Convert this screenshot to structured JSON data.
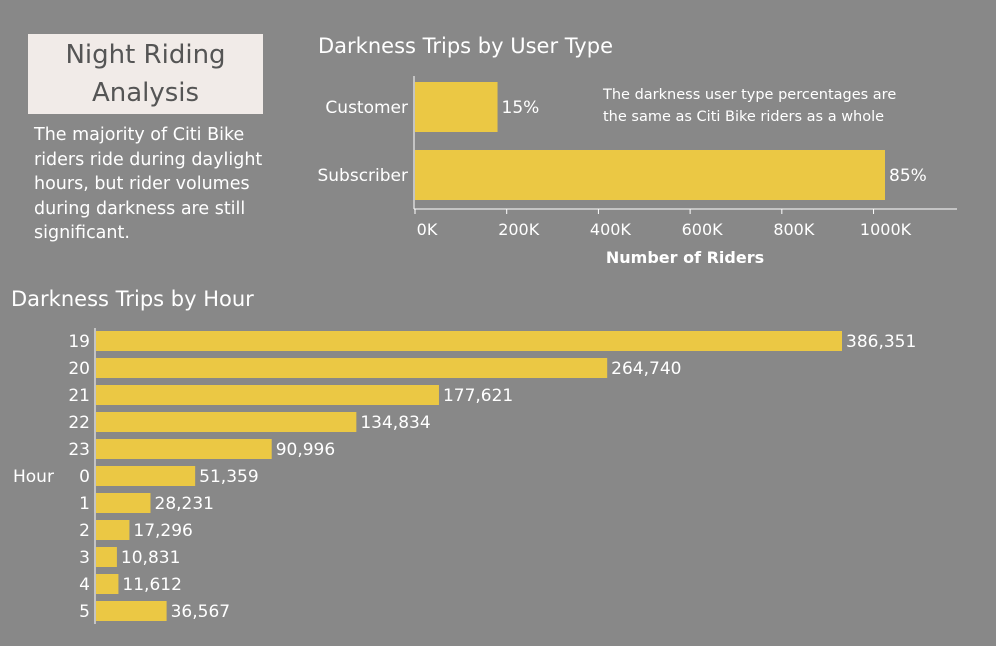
{
  "header": {
    "title": "Night Riding Analysis",
    "intro": "The majority of Citi Bike riders ride during daylight hours, but rider volumes during darkness are still significant."
  },
  "colors": {
    "background": "#888888",
    "bar": "#ebc844",
    "title_bg": "#f1ebe8",
    "title_text": "#555555"
  },
  "chart_data": [
    {
      "type": "bar",
      "orientation": "horizontal",
      "title": "Darkness Trips by User Type",
      "categories": [
        "Customer",
        "Subscriber"
      ],
      "values": [
        180000,
        1025000
      ],
      "data_labels": [
        "15%",
        "85%"
      ],
      "xlabel": "Number of Riders",
      "ylabel": "",
      "xlim": [
        0,
        1180000
      ],
      "x_ticks": [
        0,
        200000,
        400000,
        600000,
        800000,
        1000000
      ],
      "x_tick_labels": [
        "0K",
        "200K",
        "400K",
        "600K",
        "800K",
        "1000K"
      ],
      "annotation": "The darkness user type percentages are the same as Citi Bike riders as a whole",
      "grid": false,
      "legend": "none"
    },
    {
      "type": "bar",
      "orientation": "horizontal",
      "title": "Darkness Trips by Hour",
      "ylabel": "Hour",
      "xlabel": "",
      "categories": [
        "19",
        "20",
        "21",
        "22",
        "23",
        "0",
        "1",
        "2",
        "3",
        "4",
        "5"
      ],
      "values": [
        386351,
        264740,
        177621,
        134834,
        90996,
        51359,
        28231,
        17296,
        10831,
        11612,
        36567
      ],
      "data_labels": [
        "386,351",
        "264,740",
        "177,621",
        "134,834",
        "90,996",
        "51,359",
        "28,231",
        "17,296",
        "10,831",
        "11,612",
        "36,567"
      ],
      "xlim": [
        0,
        386351
      ],
      "grid": false,
      "legend": "none"
    }
  ]
}
